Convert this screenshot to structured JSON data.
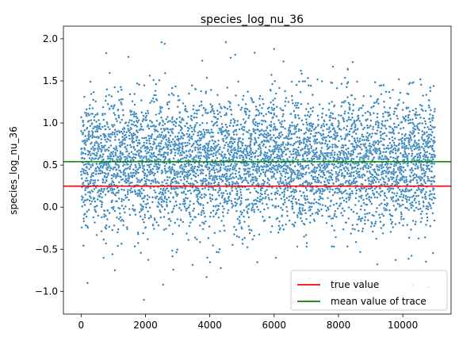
{
  "chart_data": {
    "type": "scatter",
    "title": "species_log_nu_36",
    "xlabel": "",
    "ylabel": "species_log_nu_36",
    "xlim": [
      -550,
      11500
    ],
    "ylim": [
      -1.27,
      2.15
    ],
    "xticks": [
      0,
      2000,
      4000,
      6000,
      8000,
      10000
    ],
    "xtick_labels": [
      "0",
      "2000",
      "4000",
      "6000",
      "8000",
      "10000"
    ],
    "yticks": [
      -1.0,
      -0.5,
      0.0,
      0.5,
      1.0,
      1.5,
      2.0
    ],
    "ytick_labels": [
      "−1.0",
      "−0.5",
      "0.0",
      "0.5",
      "1.0",
      "1.5",
      "2.0"
    ],
    "grid": false,
    "legend_position": "bottom-right",
    "series": [
      {
        "type": "scatter",
        "color": "#1f77b4",
        "x_range": [
          0,
          11000
        ],
        "center": 0.54,
        "spread": 0.38,
        "n_points": 5500
      }
    ],
    "hlines": [
      {
        "name": "true value",
        "y": 0.25,
        "color": "#ff0000"
      },
      {
        "name": "mean value of trace",
        "y": 0.54,
        "color": "#008000"
      }
    ],
    "notable_points": [
      {
        "x": 2500,
        "y": 1.96
      },
      {
        "x": 2600,
        "y": 1.94
      },
      {
        "x": 4500,
        "y": 1.96
      },
      {
        "x": 6000,
        "y": 1.88
      },
      {
        "x": 1950,
        "y": -1.1
      },
      {
        "x": 6600,
        "y": -1.13
      },
      {
        "x": 200,
        "y": -0.9
      },
      {
        "x": 10300,
        "y": -0.93
      },
      {
        "x": 10800,
        "y": -0.95
      },
      {
        "x": 3900,
        "y": -0.83
      },
      {
        "x": 2550,
        "y": -0.92
      },
      {
        "x": 7100,
        "y": -0.85
      }
    ]
  }
}
